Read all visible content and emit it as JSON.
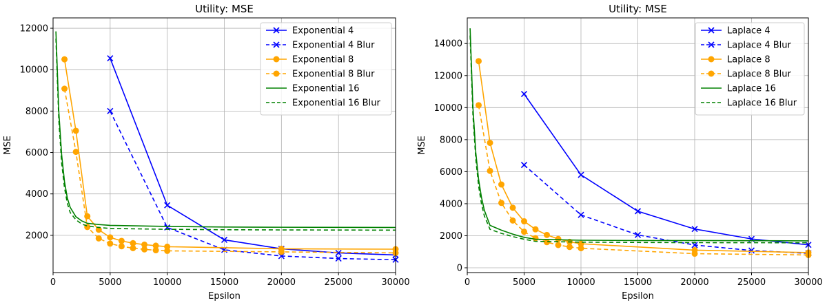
{
  "chart_data": [
    {
      "type": "line",
      "title": "Utility: MSE",
      "xlabel": "Epsilon",
      "ylabel": "MSE",
      "xlim": [
        0,
        30000
      ],
      "ylim": [
        200,
        12500
      ],
      "xticks": [
        0,
        5000,
        10000,
        15000,
        20000,
        25000,
        30000
      ],
      "yticks": [
        2000,
        4000,
        6000,
        8000,
        10000,
        12000
      ],
      "grid": true,
      "legend": "top-right",
      "series": [
        {
          "name": "Exponential 4",
          "color": "#0000ff",
          "dash": "solid",
          "marker": "x",
          "x": [
            5000,
            10000,
            15000,
            20000,
            25000,
            30000
          ],
          "y": [
            10550,
            3450,
            1780,
            1350,
            1150,
            1050
          ]
        },
        {
          "name": "Exponential 4 Blur",
          "color": "#0000ff",
          "dash": "dashed",
          "marker": "x",
          "x": [
            5000,
            10000,
            15000,
            20000,
            25000,
            30000
          ],
          "y": [
            8000,
            2380,
            1300,
            1000,
            880,
            820
          ]
        },
        {
          "name": "Exponential 8",
          "color": "#ffa500",
          "dash": "solid",
          "marker": "o",
          "x": [
            1000,
            2000,
            3000,
            4000,
            5000,
            6000,
            7000,
            8000,
            9000,
            10000,
            20000,
            30000
          ],
          "y": [
            10500,
            7050,
            2920,
            2270,
            1900,
            1730,
            1620,
            1550,
            1500,
            1450,
            1350,
            1330
          ]
        },
        {
          "name": "Exponential 8 Blur",
          "color": "#ffa500",
          "dash": "dashed",
          "marker": "o",
          "x": [
            1000,
            2000,
            3000,
            4000,
            5000,
            6000,
            7000,
            8000,
            9000,
            10000,
            20000,
            30000
          ],
          "y": [
            9080,
            6030,
            2400,
            1850,
            1600,
            1470,
            1380,
            1320,
            1280,
            1250,
            1200,
            1150
          ]
        },
        {
          "name": "Exponential 16",
          "color": "#008000",
          "dash": "solid",
          "marker": "none",
          "x": [
            250,
            500,
            750,
            1000,
            1250,
            1500,
            2000,
            2500,
            3000,
            4000,
            5000,
            10000,
            15000,
            20000,
            30000
          ],
          "y": [
            11850,
            8000,
            5900,
            4600,
            3800,
            3350,
            2900,
            2700,
            2580,
            2520,
            2480,
            2430,
            2400,
            2390,
            2380
          ]
        },
        {
          "name": "Exponential 16 Blur",
          "color": "#008000",
          "dash": "dashed",
          "marker": "none",
          "x": [
            250,
            500,
            750,
            1000,
            1250,
            1500,
            2000,
            2500,
            3000,
            4000,
            5000,
            10000,
            15000,
            20000,
            30000
          ],
          "y": [
            11500,
            7600,
            5500,
            4300,
            3550,
            3100,
            2750,
            2550,
            2450,
            2380,
            2330,
            2290,
            2270,
            2260,
            2250
          ]
        }
      ]
    },
    {
      "type": "line",
      "title": "Utility: MSE",
      "xlabel": "Epsilon",
      "ylabel": "MSE",
      "xlim": [
        0,
        30000
      ],
      "ylim": [
        -300,
        15600
      ],
      "xticks": [
        0,
        5000,
        10000,
        15000,
        20000,
        25000,
        30000
      ],
      "yticks": [
        0,
        2000,
        4000,
        6000,
        8000,
        10000,
        12000,
        14000
      ],
      "grid": true,
      "legend": "top-right",
      "series": [
        {
          "name": "Laplace 4",
          "color": "#0000ff",
          "dash": "solid",
          "marker": "x",
          "x": [
            5000,
            10000,
            15000,
            20000,
            25000,
            30000
          ],
          "y": [
            10850,
            5800,
            3530,
            2420,
            1800,
            1430
          ]
        },
        {
          "name": "Laplace 4 Blur",
          "color": "#0000ff",
          "dash": "dashed",
          "marker": "x",
          "x": [
            5000,
            10000,
            15000,
            20000,
            25000,
            30000
          ],
          "y": [
            6420,
            3300,
            2050,
            1420,
            1080,
            900
          ]
        },
        {
          "name": "Laplace 8",
          "color": "#ffa500",
          "dash": "solid",
          "marker": "o",
          "x": [
            1000,
            2000,
            3000,
            4000,
            5000,
            6000,
            7000,
            8000,
            9000,
            10000,
            20000,
            30000
          ],
          "y": [
            12900,
            7800,
            5200,
            3750,
            2900,
            2400,
            2050,
            1800,
            1620,
            1500,
            1100,
            950
          ]
        },
        {
          "name": "Laplace 8 Blur",
          "color": "#ffa500",
          "dash": "dashed",
          "marker": "o",
          "x": [
            1000,
            2000,
            3000,
            4000,
            5000,
            6000,
            7000,
            8000,
            9000,
            10000,
            20000,
            30000
          ],
          "y": [
            10150,
            6050,
            4050,
            2950,
            2250,
            1850,
            1600,
            1420,
            1300,
            1220,
            880,
            800
          ]
        },
        {
          "name": "Laplace 16",
          "color": "#008000",
          "dash": "solid",
          "marker": "none",
          "x": [
            250,
            500,
            750,
            1000,
            1250,
            1500,
            2000,
            3000,
            4000,
            5000,
            6000,
            10000,
            15000,
            20000,
            30000
          ],
          "y": [
            14950,
            10000,
            7200,
            5500,
            4400,
            3600,
            2650,
            2350,
            2100,
            1900,
            1780,
            1720,
            1700,
            1700,
            1680
          ]
        },
        {
          "name": "Laplace 16 Blur",
          "color": "#008000",
          "dash": "dashed",
          "marker": "none",
          "x": [
            250,
            500,
            750,
            1000,
            1250,
            1500,
            2000,
            3000,
            4000,
            5000,
            6000,
            10000,
            15000,
            20000,
            30000
          ],
          "y": [
            14500,
            9500,
            6800,
            5100,
            4000,
            3250,
            2400,
            2150,
            1950,
            1780,
            1650,
            1600,
            1580,
            1570,
            1560
          ]
        }
      ]
    }
  ]
}
